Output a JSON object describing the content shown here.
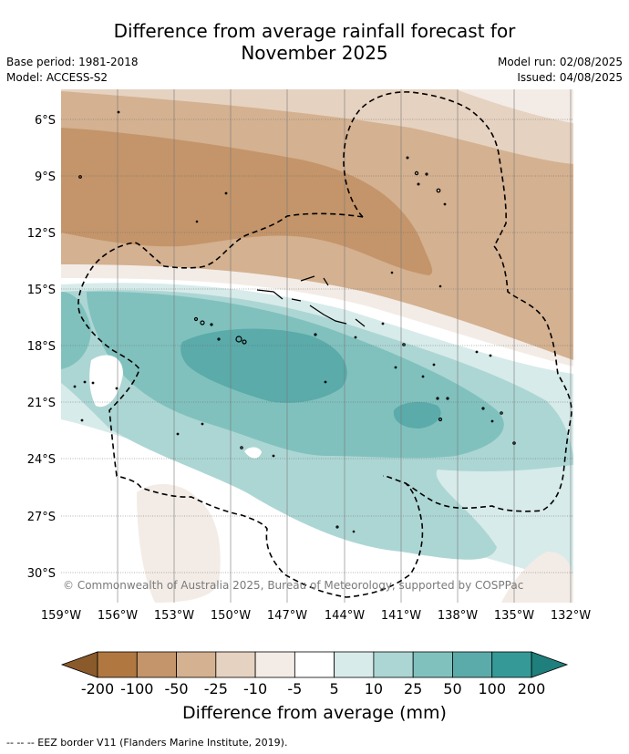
{
  "title_line1": "Difference from average rainfall forecast for",
  "title_line2": "November 2025",
  "base_period": "Base period: 1981-2018",
  "model": "Model: ACCESS-S2",
  "model_run": "Model run: 02/08/2025",
  "issued": "Issued: 04/08/2025",
  "copyright": "© Commonwealth of Australia 2025, Bureau of Meteorology, supported by COSPPac",
  "lat_labels": [
    "6°S",
    "9°S",
    "12°S",
    "15°S",
    "18°S",
    "21°S",
    "24°S",
    "27°S",
    "30°S"
  ],
  "lon_labels": [
    "159°W",
    "156°W",
    "153°W",
    "150°W",
    "147°W",
    "144°W",
    "141°W",
    "138°W",
    "135°W",
    "132°W"
  ],
  "colorbar": {
    "title": "Difference from average (mm)",
    "tick_labels": [
      "-200",
      "-100",
      "-50",
      "-25",
      "-10",
      "-5",
      "5",
      "10",
      "25",
      "50",
      "100",
      "200"
    ],
    "colors": [
      "#8a5a2b",
      "#b07840",
      "#c4956a",
      "#d4b190",
      "#e6d2c0",
      "#f3ece6",
      "#ffffff",
      "#d7ebea",
      "#acd6d4",
      "#80c1be",
      "#5aabaa",
      "#359a97",
      "#1f7f7c"
    ]
  },
  "footnote": "-- -- -- EEZ border V11 (Flanders Marine Institute, 2019)."
}
